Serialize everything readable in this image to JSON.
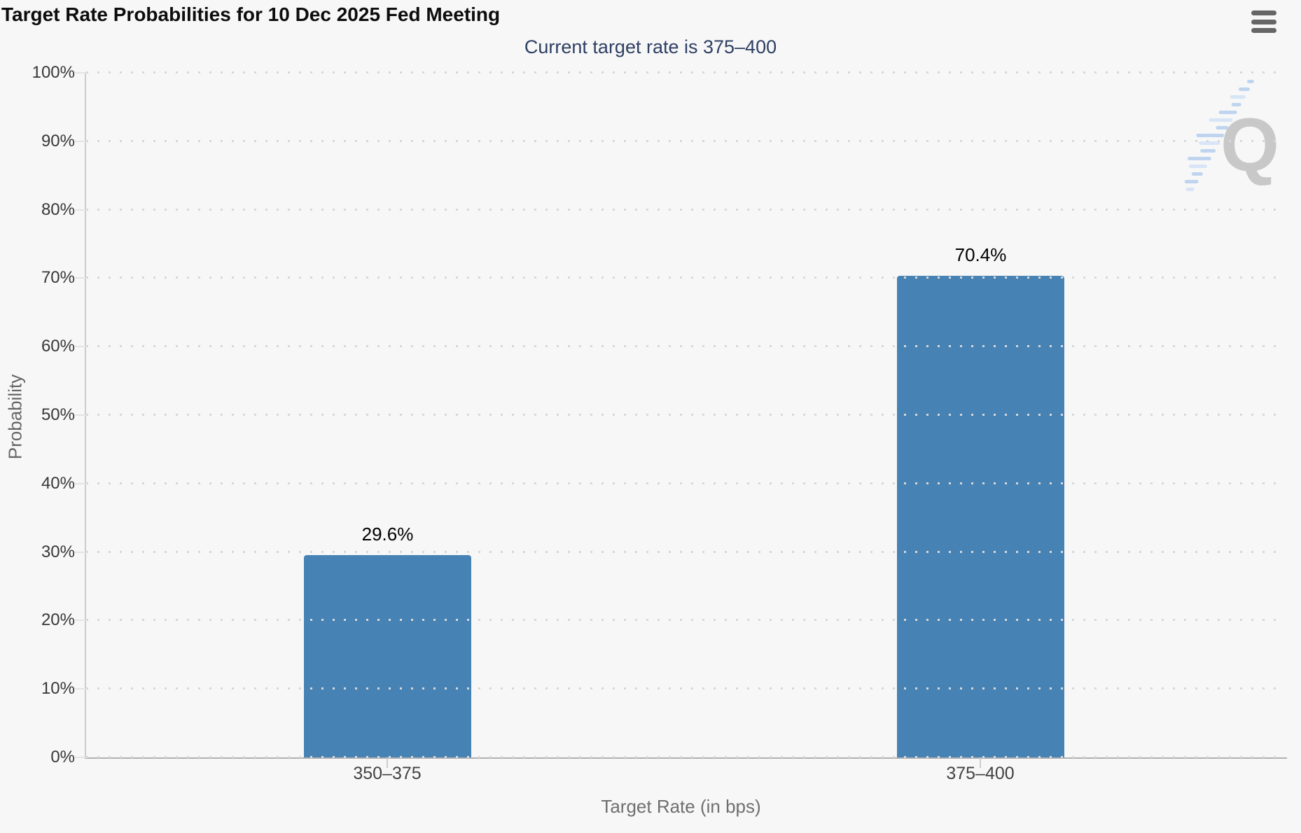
{
  "chart_data": {
    "type": "bar",
    "title": "Target Rate Probabilities for 10 Dec 2025 Fed Meeting",
    "subtitle": "Current target rate is 375–400",
    "xlabel": "Target Rate (in bps)",
    "ylabel": "Probability",
    "categories": [
      "350–375",
      "375–400"
    ],
    "values": [
      29.6,
      70.4
    ],
    "value_labels": [
      "29.6%",
      "70.4%"
    ],
    "yticks": [
      0,
      10,
      20,
      30,
      40,
      50,
      60,
      70,
      80,
      90,
      100
    ],
    "ytick_labels": [
      "0%",
      "10%",
      "20%",
      "30%",
      "40%",
      "50%",
      "60%",
      "70%",
      "80%",
      "90%",
      "100%"
    ],
    "ylim": [
      0,
      100
    ],
    "grid": "dotted-horizontal",
    "legend": "none",
    "bar_color": "#4682b4"
  },
  "menu": {
    "icon": "hamburger-export-menu"
  },
  "watermark": {
    "name": "quikstrike-q-logo"
  },
  "colors": {
    "background": "#f7f7f7",
    "bar": "#4682b4",
    "title_text": "#0d0d0d",
    "subtitle_text": "#2e3f63",
    "y_axis_line": "#cccccc",
    "x_axis_line": "#b0b0b0",
    "grid_dot": "#d8d8d8",
    "menu_icon": "#666666",
    "watermark_q": "#c4c4c4",
    "watermark_dash": "#b9d2ef"
  }
}
